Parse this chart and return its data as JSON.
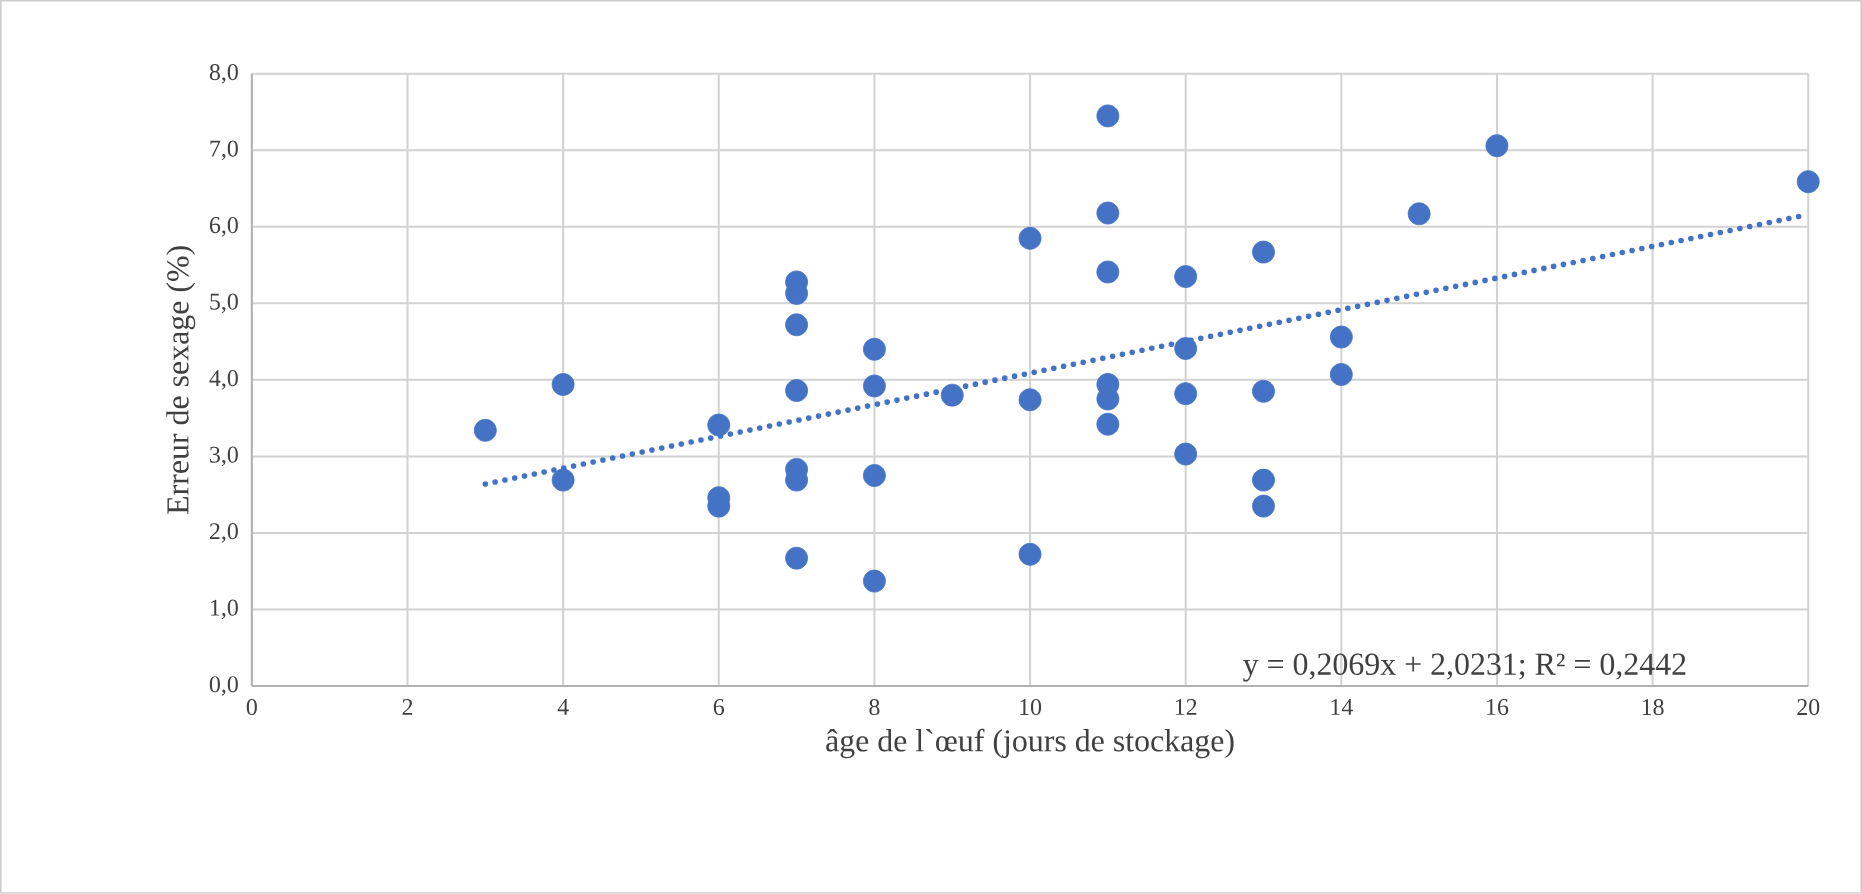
{
  "chart_data": {
    "type": "scatter",
    "xlabel": "âge de l`œuf (jours de stockage)",
    "ylabel": "Erreur de sexage (%)",
    "xlim": [
      0,
      20
    ],
    "xticks": [
      0,
      2,
      4,
      6,
      8,
      10,
      12,
      14,
      16,
      18,
      20
    ],
    "ylim": [
      0,
      8
    ],
    "yticks": [
      {
        "value": 0,
        "label": "0,0"
      },
      {
        "value": 1,
        "label": "1,0"
      },
      {
        "value": 2,
        "label": "2,0"
      },
      {
        "value": 3,
        "label": "3,0"
      },
      {
        "value": 4,
        "label": "4,0"
      },
      {
        "value": 5,
        "label": "5,0"
      },
      {
        "value": 6,
        "label": "6,0"
      },
      {
        "value": 7,
        "label": "7,0"
      },
      {
        "value": 8,
        "label": "8,0"
      }
    ],
    "grid": true,
    "marker": "circle",
    "annotations": [
      "y = 0,2069x + 2,0231; R² = 0,2442"
    ],
    "series": [
      {
        "color": "#4472c4",
        "x": [
          3,
          4,
          4,
          6,
          6,
          6,
          7,
          7,
          7,
          7,
          7,
          7,
          7,
          8,
          8,
          8,
          8,
          9,
          10,
          10,
          10,
          11,
          11,
          11,
          11,
          11,
          11,
          12,
          12,
          12,
          12,
          13,
          13,
          13,
          13,
          14,
          14,
          15,
          16,
          20
        ],
        "values": [
          3.34,
          3.94,
          2.69,
          3.41,
          2.46,
          2.35,
          5.28,
          5.13,
          4.72,
          3.86,
          2.83,
          2.69,
          1.67,
          4.4,
          3.92,
          2.75,
          1.37,
          3.8,
          5.85,
          3.74,
          1.72,
          7.45,
          6.18,
          5.41,
          3.94,
          3.75,
          3.42,
          5.35,
          4.41,
          3.82,
          3.03,
          5.67,
          3.85,
          2.69,
          2.35,
          4.56,
          4.07,
          6.17,
          7.06,
          6.59
        ]
      },
      {
        "type": "line",
        "color": "#4472c4",
        "marker": "none",
        "line_style": "dotted",
        "x": [
          3,
          20
        ],
        "values": [
          2.64,
          6.16
        ]
      }
    ]
  }
}
